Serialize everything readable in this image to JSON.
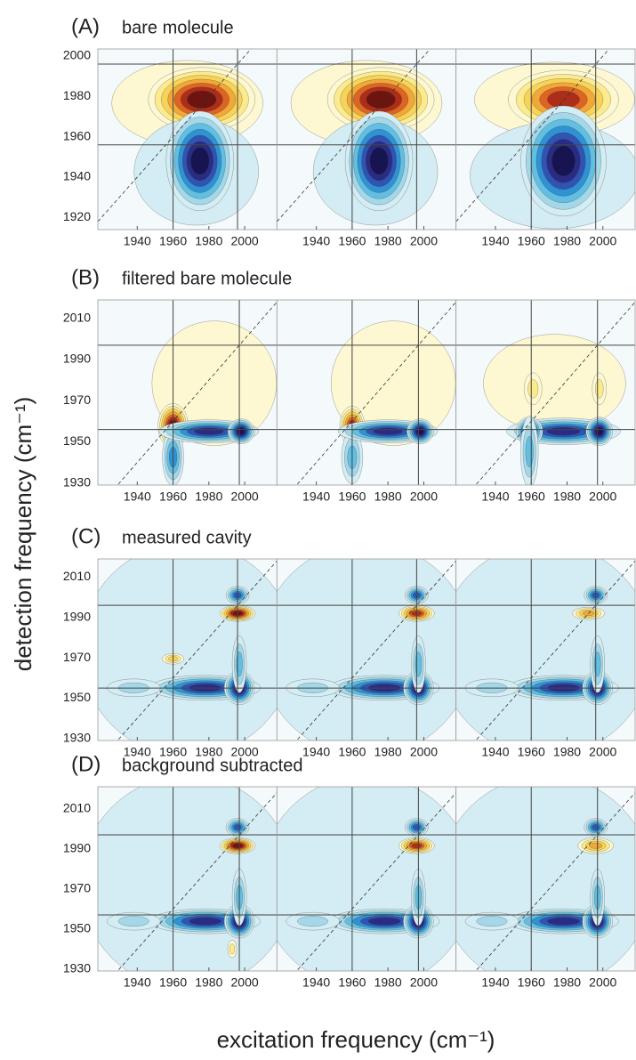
{
  "chart_data": [
    {
      "type": "contour",
      "label": "(A)",
      "title": "bare molecule",
      "xlim": [
        1918,
        2018
      ],
      "ylim": [
        1914,
        2003.5
      ],
      "xticks": [
        1940,
        1960,
        1980,
        2000
      ],
      "yticks": [
        1920,
        1940,
        1960,
        1980,
        2000
      ],
      "hlines": [
        1996,
        1956
      ],
      "vlines": [
        1960,
        1996
      ],
      "diagonal": true
    },
    {
      "type": "contour",
      "label": "(B)",
      "title": "filtered bare molecule",
      "xlim": [
        1918,
        2018
      ],
      "ylim": [
        1929,
        2019
      ],
      "xticks": [
        1940,
        1960,
        1980,
        2000
      ],
      "yticks": [
        1930,
        1950,
        1970,
        1990,
        2010
      ],
      "hlines": [
        1997,
        1956
      ],
      "vlines": [
        1960,
        1997
      ],
      "diagonal": true
    },
    {
      "type": "contour",
      "label": "(C)",
      "title": "measured cavity",
      "xlim": [
        1918,
        2018
      ],
      "ylim": [
        1929,
        2019
      ],
      "xticks": [
        1940,
        1960,
        1980,
        2000
      ],
      "yticks": [
        1930,
        1950,
        1970,
        1990,
        2010
      ],
      "hlines": [
        1996,
        1955
      ],
      "vlines": [
        1960,
        1996
      ],
      "diagonal": true
    },
    {
      "type": "contour",
      "label": "(D)",
      "title": "background subtracted",
      "xlim": [
        1918,
        2018
      ],
      "ylim": [
        1929,
        2021
      ],
      "xticks": [
        1940,
        1960,
        1980,
        2000
      ],
      "yticks": [
        1930,
        1950,
        1970,
        1990,
        2010
      ],
      "hlines": [
        1997,
        1957
      ],
      "vlines": [
        1960,
        1997
      ],
      "diagonal": true
    }
  ],
  "ylabel": "detection frequency (cm⁻¹)",
  "xlabel": "excitation frequency (cm⁻¹)"
}
